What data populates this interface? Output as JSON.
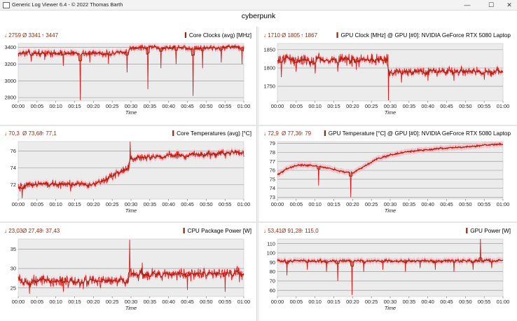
{
  "window": {
    "app_title": "Generic Log Viewer 6.4 - © 2022 Thomas Barth",
    "doc_title": "cyberpunk",
    "controls": {
      "minimize": "—",
      "maximize": "☐",
      "close": "✕"
    }
  },
  "colors": {
    "series": "#e01818",
    "trace": "#8c2a10",
    "fill": "#f4c0c8",
    "stats": "#8c2a10",
    "grid": "#909090",
    "plot_bg": "#ececec"
  },
  "chart_data": [
    {
      "type": "line",
      "title": "Core Clocks (avg) [MHz]",
      "stats": {
        "min": "↓ 2759",
        "avg": "Ø 3341",
        "max": "↑ 3447"
      },
      "xlabel": "Time",
      "x_ticks": [
        "00:00",
        "00:05",
        "00:10",
        "00:15",
        "00:20",
        "00:25",
        "00:30",
        "00:35",
        "00:40",
        "00:45",
        "00:50",
        "00:55",
        "01:00"
      ],
      "y_ticks": [
        "3400",
        "3200",
        "3000",
        "2800"
      ],
      "y_tick_values": [
        3400,
        3200,
        3000,
        2800
      ],
      "ylim": [
        2759,
        3447
      ],
      "xlim_minutes": [
        0,
        60
      ],
      "segments": [
        {
          "from": 0,
          "to": 29.5,
          "mean": 3330,
          "noise": 30
        },
        {
          "from": 29.5,
          "to": 60,
          "mean": 3395,
          "noise": 25
        }
      ],
      "dips": [
        [
          3.5,
          3230
        ],
        [
          7,
          3250
        ],
        [
          12,
          3180
        ],
        [
          16.5,
          2770
        ],
        [
          19,
          3220
        ],
        [
          24,
          3200
        ],
        [
          29,
          3100
        ],
        [
          34.5,
          2900
        ],
        [
          38,
          3150
        ],
        [
          42,
          3200
        ],
        [
          46.5,
          2820
        ],
        [
          49,
          3150
        ],
        [
          54,
          3220
        ],
        [
          59.5,
          3200
        ]
      ]
    },
    {
      "type": "line",
      "title": "GPU Clock [MHz] @ GPU [#0]: NVIDIA GeForce RTX 5080 Laptop",
      "stats": {
        "min": "↓ 1710",
        "avg": "Ø 1805",
        "max": "↑ 1867"
      },
      "xlabel": "Time",
      "x_ticks": [
        "00:00",
        "00:05",
        "00:10",
        "00:15",
        "00:20",
        "00:25",
        "00:30",
        "00:35",
        "00:40",
        "00:45",
        "00:50",
        "00:55",
        "01:00"
      ],
      "y_ticks": [
        "1850",
        "1800",
        "1750"
      ],
      "y_tick_values": [
        1850,
        1800,
        1750
      ],
      "ylim": [
        1710,
        1867
      ],
      "xlim_minutes": [
        0,
        60
      ],
      "segments": [
        {
          "from": 0,
          "to": 29.5,
          "mean": 1822,
          "noise": 12
        },
        {
          "from": 29.5,
          "to": 60,
          "mean": 1790,
          "noise": 10
        }
      ],
      "dips": [
        [
          1,
          1775
        ],
        [
          5,
          1790
        ],
        [
          10,
          1785
        ],
        [
          16,
          1790
        ],
        [
          21,
          1795
        ],
        [
          29.5,
          1712
        ],
        [
          33,
          1760
        ],
        [
          40,
          1765
        ],
        [
          47,
          1765
        ],
        [
          55,
          1768
        ]
      ]
    },
    {
      "type": "line",
      "title": "Core Temperatures (avg) [°C]",
      "stats": {
        "min": "↓ 70,3",
        "avg": "Ø 73,68",
        "max": "↑ 77,1"
      },
      "xlabel": "Time",
      "x_ticks": [
        "00:00",
        "00:05",
        "00:10",
        "00:15",
        "00:20",
        "00:25",
        "00:30",
        "00:35",
        "00:40",
        "00:45",
        "00:50",
        "00:55",
        "01:00"
      ],
      "y_ticks": [
        "76",
        "74",
        "72"
      ],
      "y_tick_values": [
        76,
        74,
        72
      ],
      "ylim": [
        70.3,
        77.1
      ],
      "xlim_minutes": [
        0,
        60
      ],
      "curve": [
        [
          0,
          71.7
        ],
        [
          5,
          72.1
        ],
        [
          10,
          72.0
        ],
        [
          15,
          72.1
        ],
        [
          20,
          72.0
        ],
        [
          23,
          72.5
        ],
        [
          27,
          73.5
        ],
        [
          29.5,
          74.0
        ],
        [
          30,
          75.0
        ],
        [
          35,
          75.3
        ],
        [
          40,
          75.4
        ],
        [
          45,
          75.5
        ],
        [
          50,
          75.6
        ],
        [
          55,
          75.7
        ],
        [
          60,
          75.8
        ]
      ],
      "noise": 0.35,
      "dips": [
        [
          1,
          70.4
        ],
        [
          14,
          71.2
        ],
        [
          29.8,
          77.1
        ]
      ]
    },
    {
      "type": "line",
      "title": "GPU Temperature [°C] @ GPU [#0]: NVIDIA GeForce RTX 5080 Laptop",
      "stats": {
        "min": "↓ 72,9",
        "avg": "Ø 77,36",
        "max": "↑ 79"
      },
      "xlabel": "Time",
      "x_ticks": [
        "00:00",
        "00:05",
        "00:10",
        "00:15",
        "00:20",
        "00:25",
        "00:30",
        "00:35",
        "00:40",
        "00:45",
        "00:50",
        "00:55",
        "01:00"
      ],
      "y_ticks": [
        "79",
        "78",
        "77",
        "76",
        "75",
        "74",
        "73"
      ],
      "y_tick_values": [
        79,
        78,
        77,
        76,
        75,
        74,
        73
      ],
      "ylim": [
        72.8,
        79.2
      ],
      "xlim_minutes": [
        0,
        60
      ],
      "curve": [
        [
          0,
          75.5
        ],
        [
          3,
          76.3
        ],
        [
          6,
          76.6
        ],
        [
          10,
          76.5
        ],
        [
          14,
          76.2
        ],
        [
          18,
          75.8
        ],
        [
          20,
          75.7
        ],
        [
          23,
          76.4
        ],
        [
          26,
          77.2
        ],
        [
          30,
          77.7
        ],
        [
          35,
          78.1
        ],
        [
          40,
          78.3
        ],
        [
          45,
          78.5
        ],
        [
          50,
          78.6
        ],
        [
          55,
          78.8
        ],
        [
          60,
          78.9
        ]
      ],
      "noise": 0.1,
      "dips": [
        [
          11,
          74.3
        ],
        [
          19.5,
          73.0
        ]
      ]
    },
    {
      "type": "line",
      "title": "CPU Package Power [W]",
      "stats": {
        "min": "↓ 23,03",
        "avg": "Ø 27,48",
        "max": "↑ 37,43"
      },
      "xlabel": "Time",
      "x_ticks": [
        "00:00",
        "00:05",
        "00:10",
        "00:15",
        "00:20",
        "00:25",
        "00:30",
        "00:35",
        "00:40",
        "00:45",
        "00:50",
        "00:55",
        "01:00"
      ],
      "y_ticks": [
        "35",
        "30",
        "25"
      ],
      "y_tick_values": [
        35,
        30,
        25
      ],
      "ylim": [
        22.8,
        37.6
      ],
      "xlim_minutes": [
        0,
        60
      ],
      "segments": [
        {
          "from": 0,
          "to": 29.5,
          "mean": 26.8,
          "noise": 1.2
        },
        {
          "from": 29.5,
          "to": 60,
          "mean": 28.5,
          "noise": 1.2
        }
      ],
      "dips": [
        [
          3,
          23.5
        ],
        [
          12,
          24.0
        ],
        [
          29.6,
          37.4
        ],
        [
          33,
          31.5
        ],
        [
          45,
          24.5
        ],
        [
          55,
          24.0
        ]
      ]
    },
    {
      "type": "line",
      "title": "GPU Power [W]",
      "stats": {
        "min": "↓ 53,41",
        "avg": "Ø 91,28",
        "max": "↑ 115,0"
      },
      "xlabel": "Time",
      "x_ticks": [
        "00:00",
        "00:05",
        "00:10",
        "00:15",
        "00:20",
        "00:25",
        "00:30",
        "00:35",
        "00:40",
        "00:45",
        "00:50",
        "00:55",
        "01:00"
      ],
      "y_ticks": [
        "110",
        "100",
        "90",
        "80",
        "70",
        "60"
      ],
      "y_tick_values": [
        110,
        100,
        90,
        80,
        70,
        60
      ],
      "ylim": [
        53.4,
        115
      ],
      "xlim_minutes": [
        0,
        60
      ],
      "segments": [
        {
          "from": 0,
          "to": 60,
          "mean": 91.5,
          "noise": 1.5
        }
      ],
      "dips": [
        [
          2.5,
          76
        ],
        [
          8,
          82
        ],
        [
          13,
          80
        ],
        [
          16,
          70
        ],
        [
          19.8,
          55
        ],
        [
          23,
          80
        ],
        [
          28,
          82
        ],
        [
          34,
          80
        ],
        [
          38,
          84
        ],
        [
          42,
          82
        ],
        [
          47,
          80
        ],
        [
          52,
          82
        ],
        [
          54,
          115
        ],
        [
          57,
          84
        ]
      ]
    }
  ]
}
